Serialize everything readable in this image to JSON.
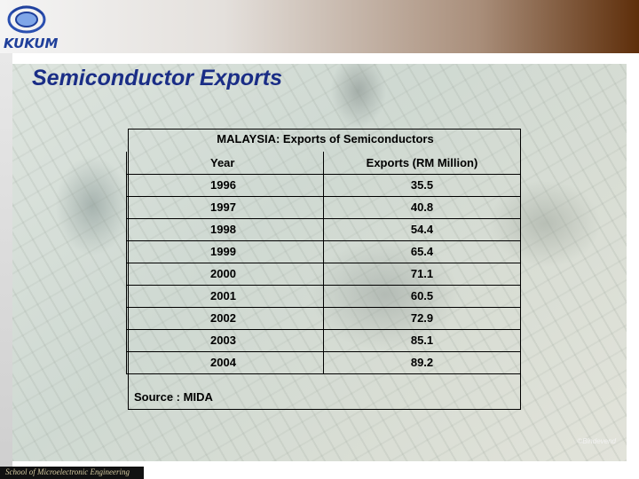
{
  "header": {
    "logo_text": "KUKUM"
  },
  "slide": {
    "title": "Semiconductor Exports",
    "photo_caption": "©Bindevend"
  },
  "table": {
    "heading": "MALAYSIA: Exports of Semiconductors",
    "columns": [
      "Year",
      "Exports (RM Million)"
    ],
    "rows": [
      {
        "year": "1996",
        "value": "35.5"
      },
      {
        "year": "1997",
        "value": "40.8"
      },
      {
        "year": "1998",
        "value": "54.4"
      },
      {
        "year": "1999",
        "value": "65.4"
      },
      {
        "year": "2000",
        "value": "71.1"
      },
      {
        "year": "2001",
        "value": "60.5"
      },
      {
        "year": "2002",
        "value": "72.9"
      },
      {
        "year": "2003",
        "value": "85.1"
      },
      {
        "year": "2004",
        "value": "89.2"
      }
    ],
    "source": "Source : MIDA"
  },
  "footer": {
    "text": "School of Microelectronic Engineering"
  },
  "colors": {
    "title": "#1a2d86",
    "header_gradient_end": "#5e2e0a"
  }
}
